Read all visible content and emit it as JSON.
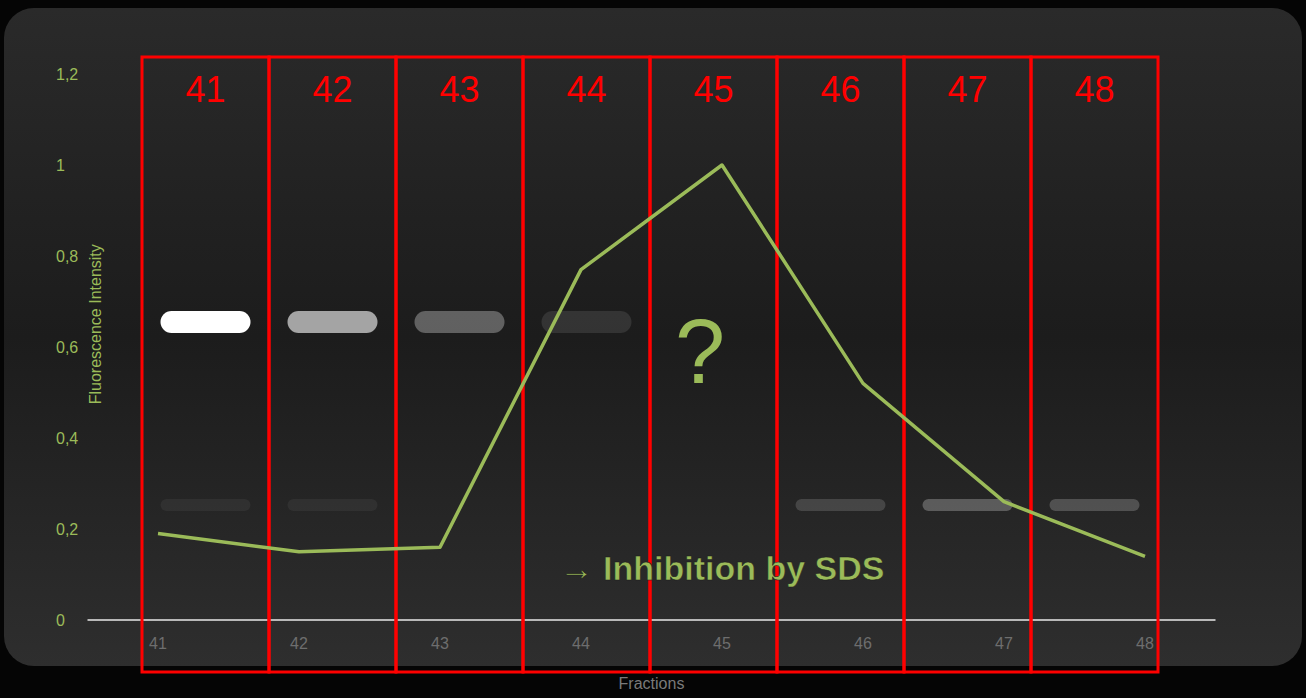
{
  "chart_data": {
    "type": "line",
    "x": [
      41,
      42,
      43,
      44,
      45,
      46,
      47,
      48
    ],
    "values": [
      0.19,
      0.15,
      0.16,
      0.77,
      1.0,
      0.52,
      0.26,
      0.14
    ],
    "color": "#9bbb59",
    "xlim": [
      40.5,
      48.5
    ],
    "xticks": [
      41,
      42,
      43,
      44,
      45,
      46,
      47,
      48
    ],
    "ylim": [
      0,
      1.2
    ],
    "yticks": [
      0,
      {
        "value": 0.2,
        "label": "0,2"
      },
      {
        "value": 0.4,
        "label": "0,4"
      },
      {
        "value": 0.6,
        "label": "0,6"
      },
      {
        "value": 0.8,
        "label": "0,8"
      },
      1,
      {
        "value": 1.2,
        "label": "1,2"
      }
    ],
    "x_label": "Fractions",
    "y_label": "Fluorescence Intensity",
    "annotations": [
      "?",
      "→ Inhibition by SDS"
    ],
    "upper_band": [
      1.0,
      0.6,
      0.3,
      0.1,
      0,
      0,
      0,
      0
    ],
    "lower_band": [
      0.05,
      0.05,
      0,
      0,
      0,
      0.15,
      0.25,
      0.2
    ],
    "grid": false
  }
}
